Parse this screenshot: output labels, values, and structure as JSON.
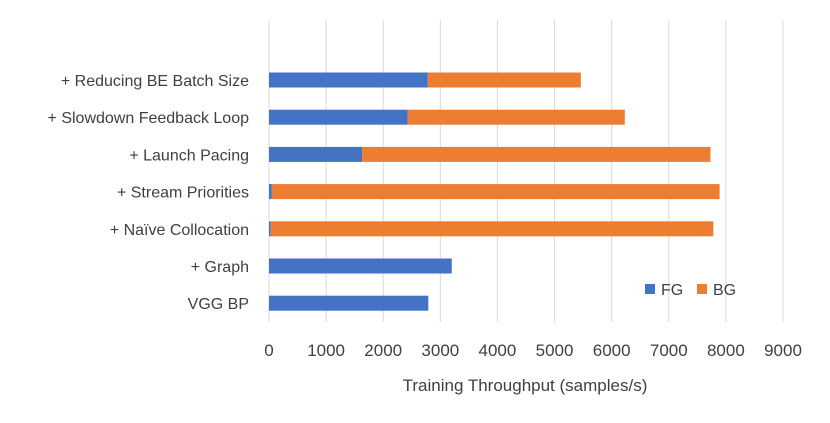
{
  "chart_data": {
    "type": "bar",
    "orientation": "horizontal",
    "stacked": true,
    "categories": [
      "+ Reducing BE Batch Size",
      "+ Slowdown Feedback Loop",
      "+ Launch Pacing",
      "+ Stream Priorities",
      "+ Naïve Collocation",
      "+ Graph",
      "VGG BP"
    ],
    "series": [
      {
        "name": "FG",
        "color": "#4472c4",
        "values": [
          2780,
          2430,
          1630,
          50,
          30,
          3200,
          2790
        ]
      },
      {
        "name": "BG",
        "color": "#ed7d31",
        "values": [
          2680,
          3800,
          6100,
          7840,
          7750,
          0,
          0
        ]
      }
    ],
    "xlabel": "Training Throughput (samples/s)",
    "ylabel": "",
    "title": "",
    "xlim": [
      0,
      9000
    ],
    "xticks": [
      "0",
      "1000",
      "2000",
      "3000",
      "4000",
      "5000",
      "6000",
      "7000",
      "8000",
      "9000"
    ],
    "grid": "vertical",
    "legend": "bottom-right"
  }
}
